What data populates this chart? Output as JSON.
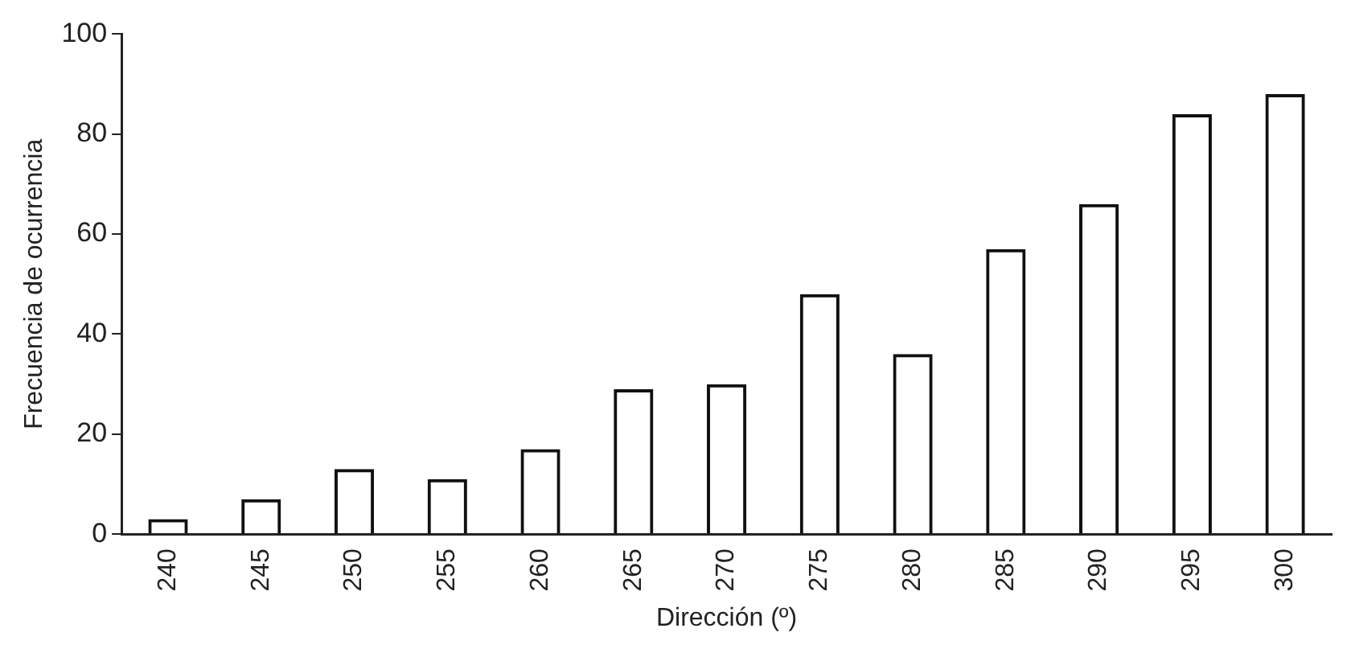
{
  "chart_data": {
    "type": "bar",
    "xlabel": "Dirección (º)",
    "ylabel": "Frecuencia de ocurrencia",
    "categories": [
      "240",
      "245",
      "250",
      "255",
      "260",
      "265",
      "270",
      "275",
      "280",
      "285",
      "290",
      "295",
      "300"
    ],
    "values": [
      3,
      7,
      13,
      11,
      17,
      29,
      30,
      48,
      36,
      57,
      66,
      84,
      88
    ],
    "color": "#111111",
    "ylim": [
      0,
      100
    ],
    "yticks": [
      0,
      20,
      40,
      60,
      80,
      100
    ],
    "grid": false,
    "legend": false
  }
}
